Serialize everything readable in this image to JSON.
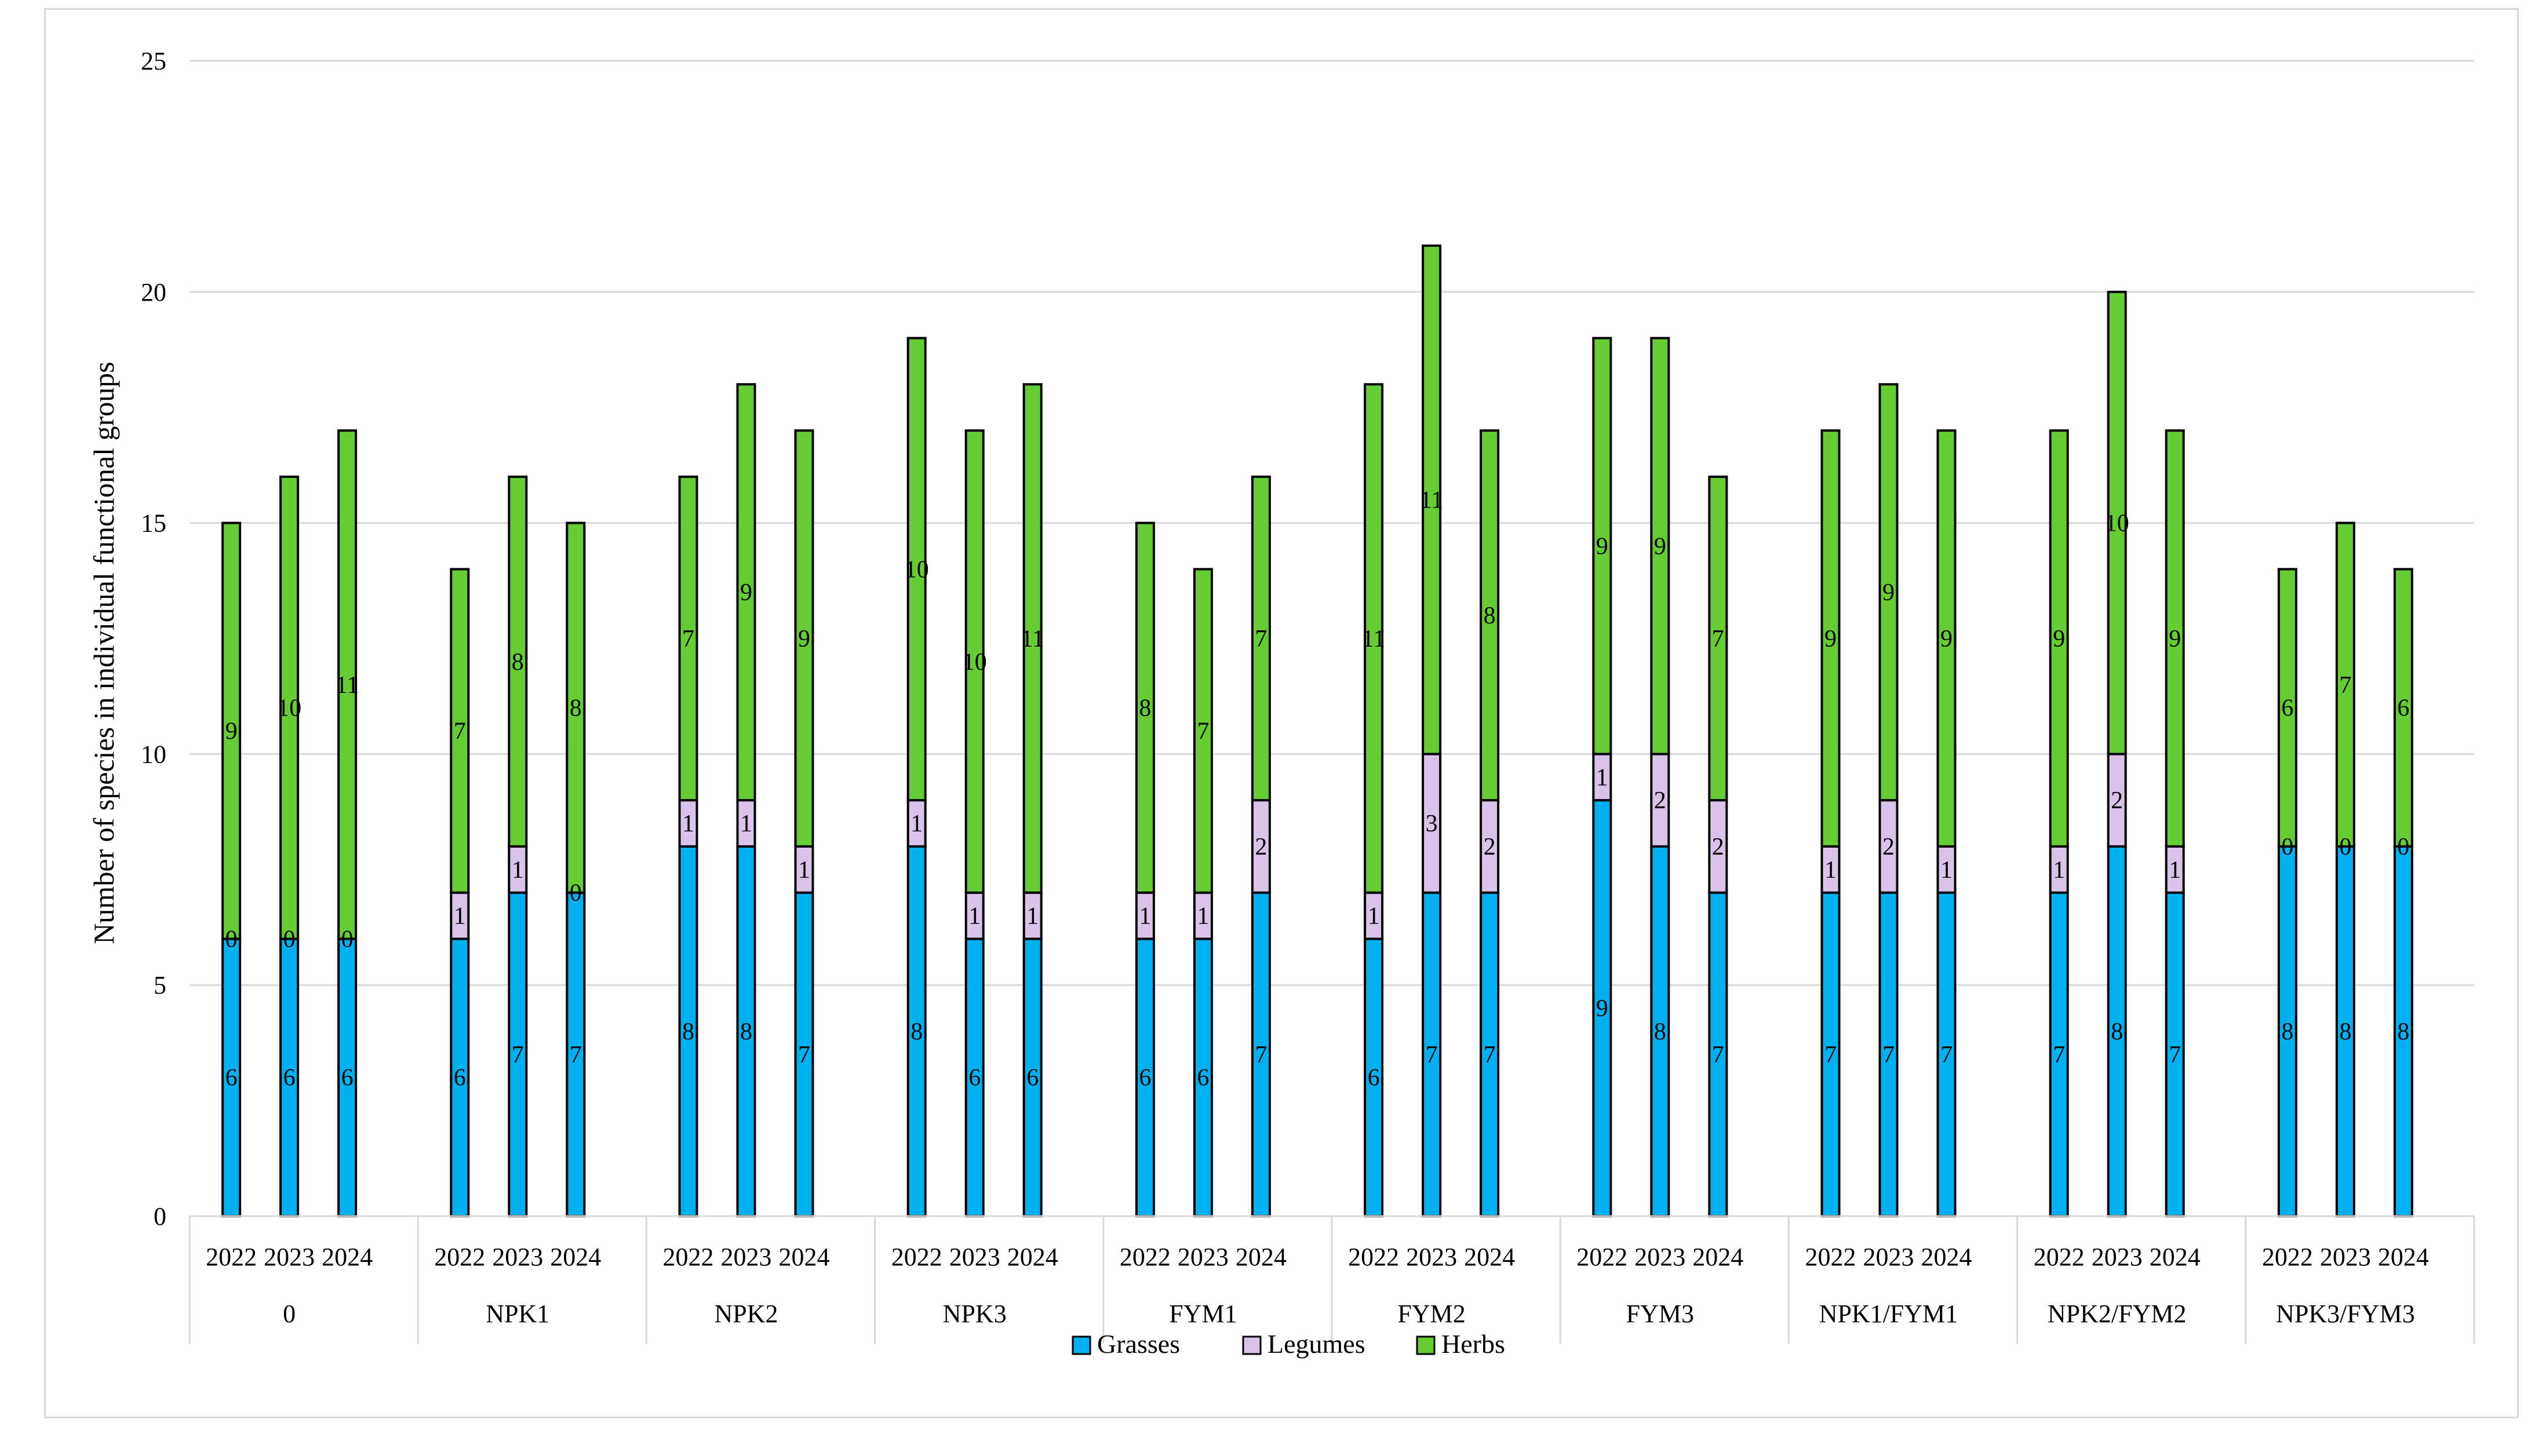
{
  "chart_data": {
    "type": "bar",
    "stacked": true,
    "title": "",
    "xlabel": "",
    "ylabel": "Number of species in individual functional groups",
    "ylim": [
      0,
      25
    ],
    "yticks": [
      0,
      5,
      10,
      15,
      20,
      25
    ],
    "grid": true,
    "legend_position": "bottom",
    "groups": [
      "0",
      "NPK1",
      "NPK2",
      "NPK3",
      "FYM1",
      "FYM2",
      "FYM3",
      "NPK1/FYM1",
      "NPK2/FYM2",
      "NPK3/FYM3"
    ],
    "years": [
      "2022",
      "2023",
      "2024"
    ],
    "series": [
      {
        "name": "Grasses",
        "color": "#00b0f0",
        "values": [
          6,
          6,
          6,
          6,
          7,
          7,
          8,
          8,
          7,
          8,
          6,
          6,
          6,
          6,
          7,
          6,
          7,
          7,
          9,
          8,
          7,
          7,
          7,
          7,
          7,
          8,
          7,
          8,
          8,
          8
        ]
      },
      {
        "name": "Legumes",
        "color": "#d9c3e9",
        "values": [
          0,
          0,
          0,
          1,
          1,
          0,
          1,
          1,
          1,
          1,
          1,
          1,
          1,
          1,
          2,
          1,
          3,
          2,
          1,
          2,
          2,
          1,
          2,
          1,
          1,
          2,
          1,
          0,
          0,
          0
        ]
      },
      {
        "name": "Herbs",
        "color": "#66cc33",
        "values": [
          9,
          10,
          11,
          7,
          8,
          8,
          7,
          9,
          9,
          10,
          10,
          11,
          8,
          7,
          7,
          11,
          11,
          8,
          9,
          9,
          7,
          9,
          9,
          9,
          9,
          10,
          9,
          6,
          7,
          6
        ]
      }
    ]
  }
}
